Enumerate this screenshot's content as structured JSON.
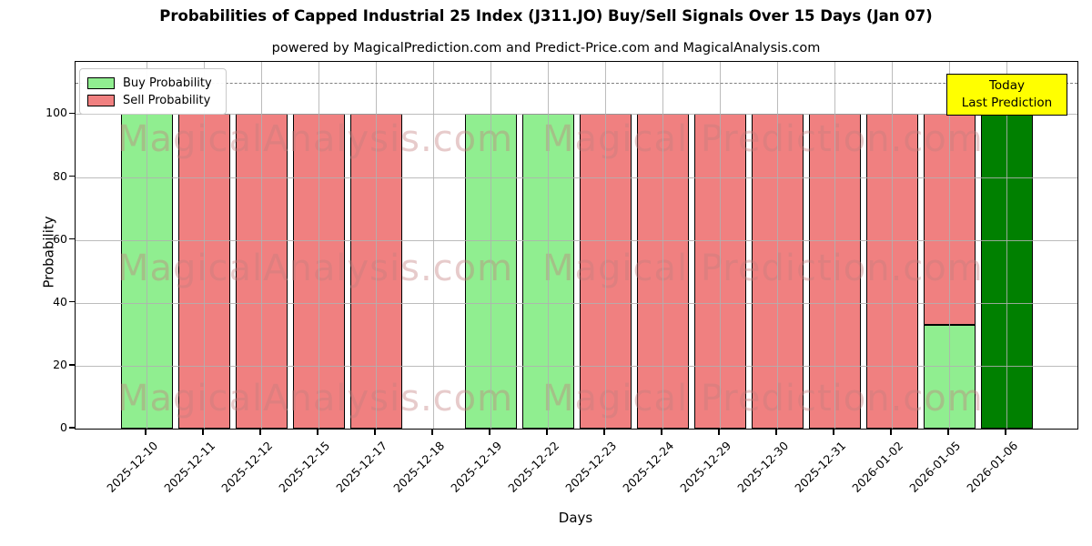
{
  "chart": {
    "title": "Probabilities of Capped Industrial 25 Index (J311.JO) Buy/Sell Signals Over 15 Days (Jan 07)",
    "subtitle": "powered by MagicalPrediction.com and Predict-Price.com and MagicalAnalysis.com",
    "x_axis_label": "Days",
    "y_axis_label": "Probability",
    "legend": [
      {
        "label": "Buy Probability",
        "color": "#90EE90"
      },
      {
        "label": "Sell Probability",
        "color": "#F08080"
      }
    ],
    "annotation": {
      "line1": "Today",
      "line2": "Last Prediction",
      "bg_color": "#FFFF00"
    },
    "watermark": {
      "left": "MagicalAnalysis.com",
      "right": "Magical Prediction.com"
    }
  },
  "chart_data": {
    "type": "bar",
    "stacked": true,
    "title": "Probabilities of Capped Industrial 25 Index (J311.JO) Buy/Sell Signals Over 15 Days (Jan 07)",
    "xlabel": "Days",
    "ylabel": "Probability",
    "ylim": [
      0,
      117
    ],
    "yticks": [
      0,
      20,
      40,
      60,
      80,
      100
    ],
    "grid": true,
    "legend_position": "upper left",
    "threshold_dashed_line_y": 110,
    "categories": [
      "2025-12-10",
      "2025-12-11",
      "2025-12-12",
      "2025-12-15",
      "2025-12-17",
      "2025-12-18",
      "2025-12-19",
      "2025-12-22",
      "2025-12-23",
      "2025-12-24",
      "2025-12-29",
      "2025-12-30",
      "2025-12-31",
      "2026-01-02",
      "2026-01-05",
      "2026-01-06"
    ],
    "series": [
      {
        "name": "Buy Probability",
        "color": "#90EE90",
        "values": [
          100,
          0,
          0,
          0,
          0,
          0,
          100,
          100,
          0,
          0,
          0,
          0,
          0,
          0,
          33,
          0
        ]
      },
      {
        "name": "Sell Probability",
        "color": "#F08080",
        "values": [
          0,
          100,
          100,
          100,
          100,
          0,
          0,
          0,
          100,
          100,
          100,
          100,
          100,
          100,
          67,
          0
        ]
      },
      {
        "name": "Today / Last Prediction",
        "color": "#008000",
        "values": [
          0,
          0,
          0,
          0,
          0,
          0,
          0,
          0,
          0,
          0,
          0,
          0,
          0,
          0,
          0,
          100
        ]
      }
    ]
  }
}
